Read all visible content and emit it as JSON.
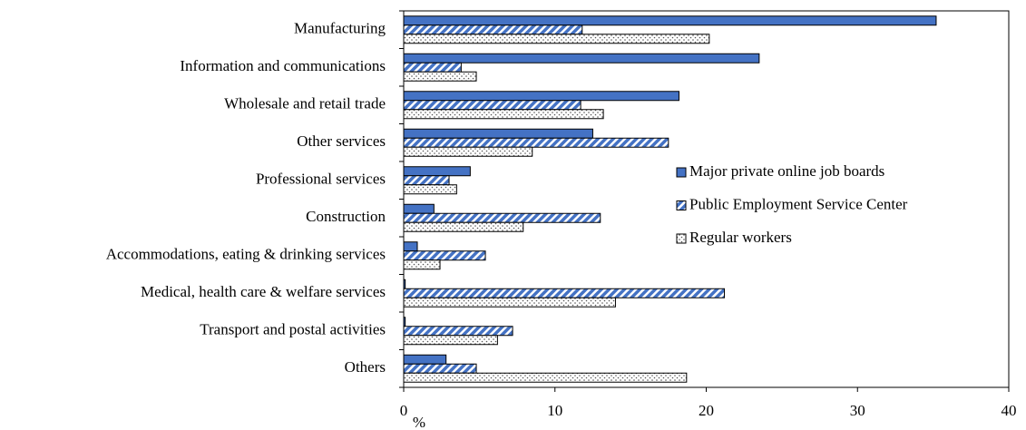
{
  "chart_data": {
    "type": "hbar",
    "x_label": "%",
    "categories": [
      "Manufacturing",
      "Information and communications",
      "Wholesale and retail trade",
      "Other services",
      "Professional services",
      "Construction",
      "Accommodations, eating & drinking services",
      "Medical, health care & welfare services",
      "Transport and postal activities",
      "Others"
    ],
    "series": [
      {
        "name": "Major private online job boards",
        "color": "#4472c4",
        "pattern": "solid",
        "values": [
          35.2,
          23.5,
          18.2,
          12.5,
          4.4,
          2.0,
          0.9,
          0.1,
          0.1,
          2.8
        ]
      },
      {
        "name": "Public Employment Service Center",
        "color": "#4472c4",
        "pattern": "hatch",
        "values": [
          11.8,
          3.8,
          11.7,
          17.5,
          3.0,
          13.0,
          5.4,
          21.2,
          7.2,
          4.8
        ]
      },
      {
        "name": "Regular workers",
        "color": "#555555",
        "pattern": "dots",
        "values": [
          20.2,
          4.8,
          13.2,
          8.5,
          3.5,
          7.9,
          2.4,
          14.0,
          6.2,
          18.7
        ]
      }
    ],
    "xlim": [
      0,
      40
    ],
    "xticks": [
      0,
      10,
      20,
      30,
      40
    ],
    "grid": false
  }
}
